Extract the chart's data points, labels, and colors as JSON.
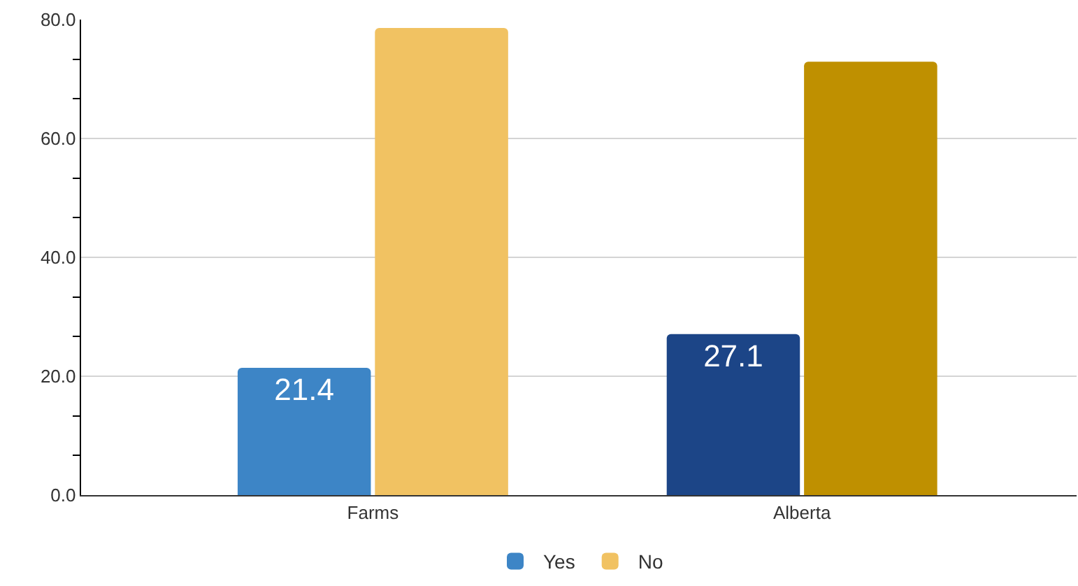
{
  "chart_data": {
    "type": "bar",
    "categories": [
      "Farms",
      "Alberta"
    ],
    "series": [
      {
        "name": "Yes",
        "colors": [
          "#3d85c6",
          "#1c4587"
        ],
        "values": [
          21.4,
          27.1
        ],
        "value_labels": [
          "21.4",
          "27.1"
        ]
      },
      {
        "name": "No",
        "colors": [
          "#f1c262",
          "#bf9000"
        ],
        "values": [
          78.6,
          72.9
        ]
      }
    ],
    "ylim": [
      0,
      80
    ],
    "yticks": [
      {
        "value": 0,
        "label": "0.0"
      },
      {
        "value": 6.7,
        "label": null
      },
      {
        "value": 13.3,
        "label": null
      },
      {
        "value": 20,
        "label": "20.0"
      },
      {
        "value": 26.7,
        "label": null
      },
      {
        "value": 33.3,
        "label": null
      },
      {
        "value": 40,
        "label": "40.0"
      },
      {
        "value": 46.7,
        "label": null
      },
      {
        "value": 53.3,
        "label": null
      },
      {
        "value": 60,
        "label": "60.0"
      },
      {
        "value": 66.7,
        "label": null
      },
      {
        "value": 73.3,
        "label": null
      },
      {
        "value": 80,
        "label": "80.0"
      }
    ],
    "grid": "y",
    "legend": "bottom"
  }
}
